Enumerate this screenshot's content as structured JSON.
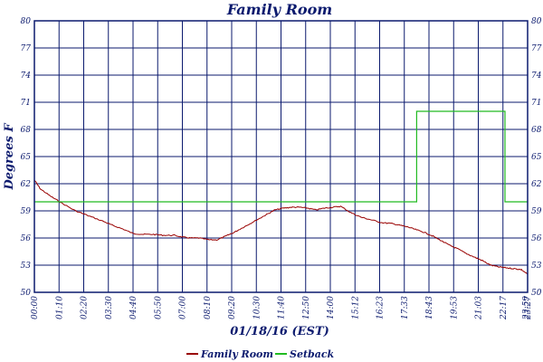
{
  "chart_data": {
    "type": "line",
    "title": "Family Room",
    "xlabel": "01/18/16 (EST)",
    "ylabel": "Degrees F",
    "ylim": [
      50,
      80
    ],
    "y_ticks": [
      "50",
      "53",
      "56",
      "59",
      "62",
      "65",
      "68",
      "71",
      "74",
      "77",
      "80"
    ],
    "x_tick_labels": [
      "00:00",
      "01:10",
      "02:20",
      "03:30",
      "04:40",
      "05:50",
      "07:00",
      "08:10",
      "09:20",
      "10:30",
      "11:40",
      "12:50",
      "14:00",
      "15:12",
      "16:23",
      "17:33",
      "18:43",
      "19:53",
      "21:03",
      "22:17",
      "23:27",
      "23:59"
    ],
    "grid": true,
    "legend_position": "bottom",
    "colors": {
      "axis": "#0b1a6e",
      "grid": "#0b1a6e",
      "family_room": "#990000",
      "setback": "#22bb22"
    },
    "series": [
      {
        "name": "Family Room",
        "color": "#990000",
        "x": [
          0,
          0.3,
          0.8,
          1.3,
          2.0,
          2.7,
          3.4,
          3.8,
          4.3,
          4.8,
          5.3,
          5.8,
          6.3,
          6.8,
          7.2,
          7.6,
          8.0,
          8.5,
          8.9,
          9.3,
          9.7,
          10.1,
          10.5,
          10.9,
          11.3,
          11.7,
          12.1,
          12.5,
          12.9,
          13.3,
          13.7,
          14.1,
          14.5,
          14.9,
          15.4,
          15.9,
          16.4,
          16.9,
          17.4,
          17.8,
          18.2,
          18.6,
          19.0,
          19.4,
          19.8,
          20.2,
          20.6,
          21.0,
          21.4,
          21.8,
          22.2,
          22.6,
          23.0,
          23.4,
          23.7,
          24.0
        ],
        "values": [
          62.4,
          61.4,
          60.6,
          59.9,
          59.0,
          58.4,
          57.8,
          57.4,
          57.0,
          56.5,
          56.4,
          56.4,
          56.3,
          56.3,
          56.1,
          56.0,
          56.0,
          55.8,
          55.8,
          56.2,
          56.6,
          57.1,
          57.6,
          58.1,
          58.6,
          59.1,
          59.3,
          59.4,
          59.4,
          59.3,
          59.1,
          59.3,
          59.4,
          59.5,
          58.8,
          58.3,
          58.0,
          57.7,
          57.6,
          57.4,
          57.2,
          56.9,
          56.6,
          56.2,
          55.7,
          55.2,
          54.8,
          54.3,
          53.9,
          53.5,
          53.0,
          52.8,
          52.7,
          52.6,
          52.5,
          52.0
        ]
      },
      {
        "name": "Setback",
        "color": "#22bb22",
        "step": true,
        "x": [
          0,
          18.6,
          18.6,
          22.9,
          22.9,
          24.0
        ],
        "values": [
          60,
          60,
          70,
          70,
          60,
          60
        ]
      }
    ]
  }
}
